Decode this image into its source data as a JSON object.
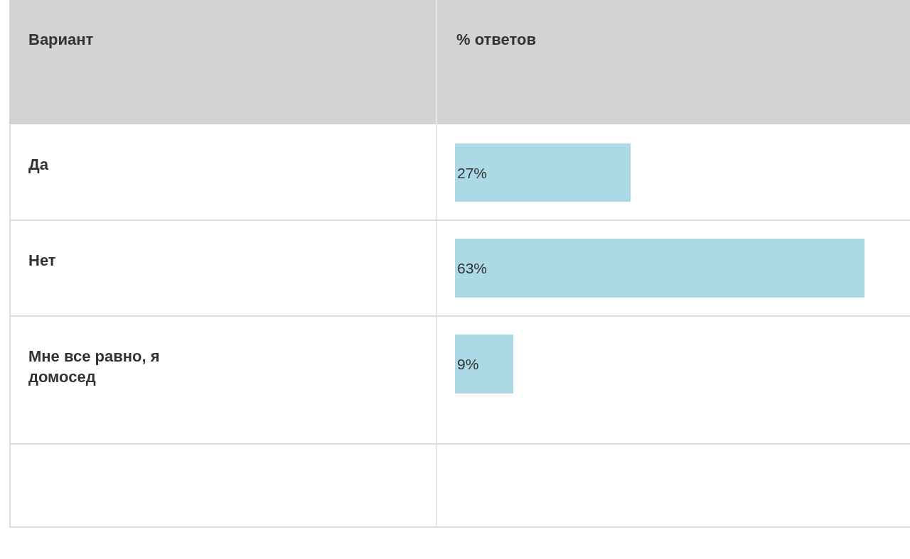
{
  "chart_data": {
    "type": "bar",
    "orientation": "horizontal",
    "annotations": [
      "Вариант",
      "% ответов"
    ],
    "categories": [
      "Да",
      "Нет",
      "Мне все равно, я домосед"
    ],
    "values": [
      27,
      63,
      9
    ],
    "value_labels": [
      "27%",
      "63%",
      "9%"
    ],
    "color": "#add8e6",
    "xlim": [
      0,
      70
    ],
    "tick_labels": "y",
    "grid": false
  }
}
